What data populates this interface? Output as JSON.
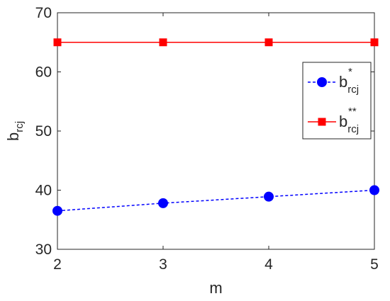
{
  "chart_data": {
    "type": "line",
    "x": [
      2,
      3,
      4,
      5
    ],
    "xlim": [
      2,
      5
    ],
    "ylim": [
      30,
      70
    ],
    "xticks": [
      "2",
      "3",
      "4",
      "5"
    ],
    "yticks": [
      "30",
      "40",
      "50",
      "60",
      "70"
    ],
    "xlabel": "m",
    "ylabel": {
      "base": "b",
      "sub": "rcj"
    },
    "grid": false,
    "legend_position": "right",
    "series": [
      {
        "name": {
          "base": "b",
          "sup": "*",
          "sub": "rcj"
        },
        "values": [
          36.5,
          37.8,
          38.9,
          40.0
        ],
        "color": "#0000ff",
        "line": "dashed",
        "marker": "circle"
      },
      {
        "name": {
          "base": "b",
          "sup": "**",
          "sub": "rcj"
        },
        "values": [
          65,
          65,
          65,
          65
        ],
        "color": "#ff0000",
        "line": "solid",
        "marker": "square"
      }
    ]
  }
}
